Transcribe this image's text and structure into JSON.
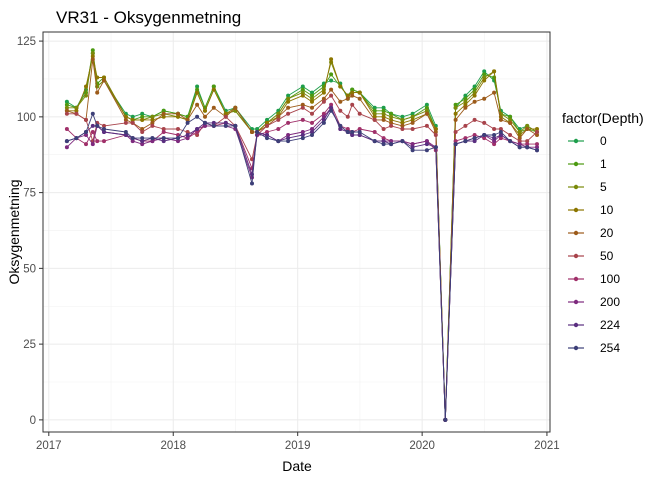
{
  "chart_data": {
    "type": "line",
    "title": "VR31  -  Oksygenmetning",
    "xlabel": "Date",
    "ylabel": "Oksygenmetning",
    "legend_title": "factor(Depth)",
    "legend_position": "right",
    "grid": true,
    "x_range": [
      "2016-12-15",
      "2021-01-10"
    ],
    "ylim": [
      -4,
      128
    ],
    "x_ticks": [
      {
        "date": "2017-01-01",
        "label": "2017"
      },
      {
        "date": "2018-01-01",
        "label": "2018"
      },
      {
        "date": "2019-01-01",
        "label": "2019"
      },
      {
        "date": "2020-01-01",
        "label": "2020"
      },
      {
        "date": "2021-01-01",
        "label": "2021"
      }
    ],
    "y_ticks": [
      {
        "value": 0,
        "label": "0"
      },
      {
        "value": 25,
        "label": "25"
      },
      {
        "value": 50,
        "label": "50"
      },
      {
        "value": 75,
        "label": "75"
      },
      {
        "value": 100,
        "label": "100"
      },
      {
        "value": 125,
        "label": "125"
      }
    ],
    "x": [
      "2017-02-23",
      "2017-03-23",
      "2017-04-20",
      "2017-05-10",
      "2017-05-23",
      "2017-06-12",
      "2017-08-15",
      "2017-09-04",
      "2017-10-02",
      "2017-11-01",
      "2017-12-04",
      "2018-01-15",
      "2018-02-12",
      "2018-03-12",
      "2018-04-04",
      "2018-04-30",
      "2018-06-04",
      "2018-07-02",
      "2018-08-20",
      "2018-09-04",
      "2018-10-03",
      "2018-11-05",
      "2018-12-04",
      "2019-01-16",
      "2019-02-12",
      "2019-03-19",
      "2019-04-09",
      "2019-05-06",
      "2019-05-28",
      "2019-06-10",
      "2019-07-02",
      "2019-08-15",
      "2019-09-10",
      "2019-10-02",
      "2019-11-04",
      "2019-12-04",
      "2020-01-15",
      "2020-02-10",
      "2020-03-09",
      "2020-04-08",
      "2020-05-07",
      "2020-06-03",
      "2020-07-01",
      "2020-07-30",
      "2020-08-19",
      "2020-09-15",
      "2020-10-13",
      "2020-11-04",
      "2020-12-03"
    ],
    "series": [
      {
        "name": "0",
        "color": "#1E9E4C",
        "values": [
          105,
          103,
          109,
          121,
          110,
          112,
          101,
          100,
          101,
          100,
          102,
          101,
          100,
          110,
          103,
          110,
          102,
          103,
          96,
          96,
          99,
          102,
          107,
          110,
          108,
          111,
          112,
          111,
          106,
          109,
          108,
          103,
          103,
          101,
          100,
          101,
          104,
          97,
          0,
          103,
          107,
          110,
          115,
          112,
          102,
          100,
          96,
          97,
          95
        ]
      },
      {
        "name": "1",
        "color": "#4C9A11",
        "values": [
          104,
          103,
          108,
          122,
          111,
          113,
          100,
          99,
          100,
          100,
          102,
          101,
          100,
          109,
          103,
          110,
          101,
          102,
          95,
          95,
          98,
          101,
          106,
          109,
          107,
          110,
          114,
          110,
          107,
          109,
          108,
          102,
          102,
          101,
          99,
          100,
          103,
          96,
          0,
          104,
          106,
          109,
          114,
          113,
          101,
          100,
          95,
          96,
          95
        ]
      },
      {
        "name": "5",
        "color": "#7A8A0A",
        "values": [
          103,
          103,
          107,
          121,
          110,
          112,
          100,
          99,
          99,
          100,
          101,
          100,
          99,
          108,
          102,
          109,
          101,
          102,
          95,
          95,
          98,
          101,
          106,
          108,
          106,
          109,
          118,
          110,
          107,
          108,
          108,
          101,
          101,
          100,
          99,
          100,
          102,
          96,
          0,
          103,
          105,
          108,
          113,
          115,
          101,
          99,
          95,
          97,
          95
        ]
      },
      {
        "name": "10",
        "color": "#8C7600",
        "values": [
          102,
          102,
          110,
          120,
          113,
          113,
          100,
          99,
          99,
          99,
          100,
          100,
          99,
          108,
          102,
          109,
          101,
          103,
          95,
          95,
          98,
          100,
          105,
          107,
          105,
          108,
          119,
          110,
          107,
          108,
          108,
          100,
          100,
          99,
          98,
          99,
          101,
          96,
          0,
          101,
          104,
          107,
          112,
          115,
          100,
          98,
          94,
          96,
          96
        ]
      },
      {
        "name": "20",
        "color": "#9C5B1A",
        "values": [
          102,
          101,
          99,
          119,
          108,
          112,
          99,
          98,
          96,
          98,
          101,
          101,
          99,
          104,
          100,
          103,
          100,
          103,
          95,
          95,
          97,
          100,
          103,
          104,
          103,
          106,
          109,
          105,
          106,
          107,
          106,
          99,
          99,
          98,
          97,
          98,
          101,
          95,
          0,
          99,
          103,
          105,
          106,
          108,
          99,
          98,
          93,
          96,
          94
        ]
      },
      {
        "name": "50",
        "color": "#A8434B",
        "values": [
          101,
          101,
          99,
          92,
          98,
          97,
          98,
          98,
          95,
          97,
          96,
          96,
          95,
          94,
          98,
          97,
          100,
          97,
          86,
          94,
          97,
          99,
          101,
          103,
          101,
          105,
          107,
          102,
          100,
          104,
          101,
          99,
          96,
          97,
          96,
          96,
          97,
          94,
          0,
          95,
          97,
          99,
          98,
          96,
          96,
          94,
          92,
          92,
          95
        ]
      },
      {
        "name": "100",
        "color": "#A0306A",
        "values": [
          96,
          93,
          91,
          95,
          92,
          92,
          94,
          93,
          92,
          92,
          95,
          94,
          93,
          95,
          97,
          97,
          98,
          97,
          83,
          94,
          95,
          96,
          98,
          99,
          98,
          101,
          104,
          97,
          96,
          95,
          96,
          95,
          93,
          92,
          92,
          91,
          92,
          89,
          0,
          92,
          93,
          94,
          93,
          91,
          93,
          92,
          91,
          91,
          91
        ]
      },
      {
        "name": "200",
        "color": "#7E2A7E",
        "values": [
          90,
          93,
          94,
          91,
          97,
          95,
          94,
          92,
          91,
          92,
          93,
          92,
          93,
          96,
          97,
          97,
          97,
          96,
          80,
          94,
          94,
          92,
          94,
          95,
          96,
          100,
          103,
          96,
          95,
          94,
          94,
          92,
          92,
          92,
          92,
          91,
          92,
          90,
          0,
          91,
          92,
          93,
          94,
          92,
          94,
          92,
          91,
          90,
          90
        ]
      },
      {
        "name": "224",
        "color": "#5A2E80",
        "values": [
          92,
          93,
          95,
          97,
          97,
          95,
          94,
          93,
          92,
          93,
          92,
          93,
          94,
          96,
          98,
          98,
          98,
          97,
          81,
          95,
          94,
          92,
          93,
          94,
          95,
          99,
          103,
          96,
          95,
          94,
          94,
          92,
          92,
          91,
          92,
          90,
          91,
          90,
          0,
          91,
          92,
          92,
          94,
          93,
          94,
          92,
          90,
          90,
          89
        ]
      },
      {
        "name": "254",
        "color": "#3D3F78",
        "values": [
          92,
          93,
          95,
          101,
          97,
          96,
          95,
          93,
          93,
          93,
          93,
          93,
          98,
          100,
          98,
          97,
          97,
          97,
          78,
          95,
          93,
          92,
          92,
          93,
          94,
          98,
          102,
          97,
          95,
          95,
          95,
          92,
          91,
          91,
          92,
          89,
          89,
          90,
          0,
          91,
          92,
          93,
          94,
          94,
          95,
          92,
          90,
          90,
          89
        ]
      }
    ]
  }
}
